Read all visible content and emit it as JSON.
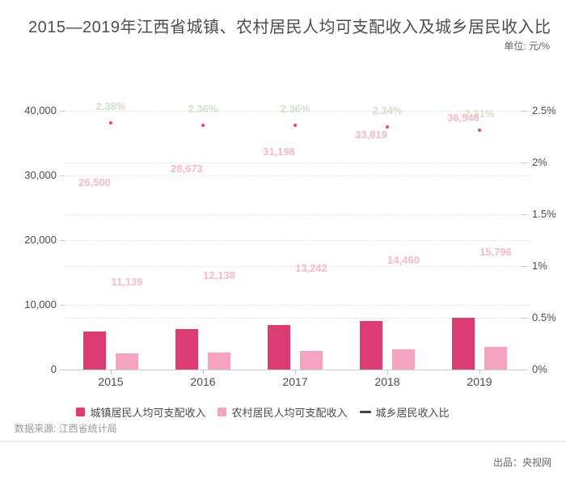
{
  "header": {
    "title": "2015—2019年江西省城镇、农村居民人均可支配收入及城乡居民收入比",
    "unit_label": "单位: 元/%"
  },
  "chart_data": {
    "type": "combo (bar + line)",
    "categories": [
      "2015",
      "2016",
      "2017",
      "2018",
      "2019"
    ],
    "series": [
      {
        "name": "城镇居民人均可支配收入",
        "type": "bar",
        "axis": "left",
        "color": "#dc3c74",
        "label_color": "#f6b1c9",
        "values": [
          26500,
          28673,
          31198,
          33819,
          36546
        ],
        "labels": [
          "26,500",
          "28,673",
          "31,198",
          "33,819",
          "36,546"
        ]
      },
      {
        "name": "农村居民人均可支配收入",
        "type": "bar",
        "axis": "left",
        "color": "#f4a3c1",
        "label_color": "#f6b1c9",
        "values": [
          11139,
          12138,
          13242,
          14460,
          15796
        ],
        "labels": [
          "11,139",
          "12,138",
          "13,242",
          "14,460",
          "15,796"
        ]
      },
      {
        "name": "城乡居民收入比",
        "type": "line",
        "axis": "right",
        "color": "#444444",
        "point_color": "#e9486b",
        "label_color": "#cddec4",
        "values": [
          2.38,
          2.36,
          2.36,
          2.34,
          2.31
        ],
        "labels": [
          "2.38%",
          "2.36%",
          "2.36%",
          "2.34%",
          "2.31%"
        ]
      }
    ],
    "left_axis": {
      "ticks": [
        "0",
        "10,000",
        "20,000",
        "30,000",
        "40,000"
      ],
      "values": [
        0,
        10000,
        20000,
        30000,
        40000
      ],
      "min": 0,
      "max": 40000
    },
    "right_axis": {
      "ticks": [
        "0%",
        "0.5%",
        "1%",
        "1.5%",
        "2%",
        "2.5%"
      ],
      "values": [
        0,
        0.5,
        1,
        1.5,
        2,
        2.5
      ],
      "min": 0,
      "max": 2.5
    },
    "layout_hints": {
      "grid": "dashed, both axes",
      "legend_position": "bottom",
      "bar_height_fraction": 0.22,
      "bar_labels_at_full_value_position": true
    }
  },
  "footer": {
    "source": "数据来源: 江西省统计局",
    "producer": "出品：央视网"
  }
}
